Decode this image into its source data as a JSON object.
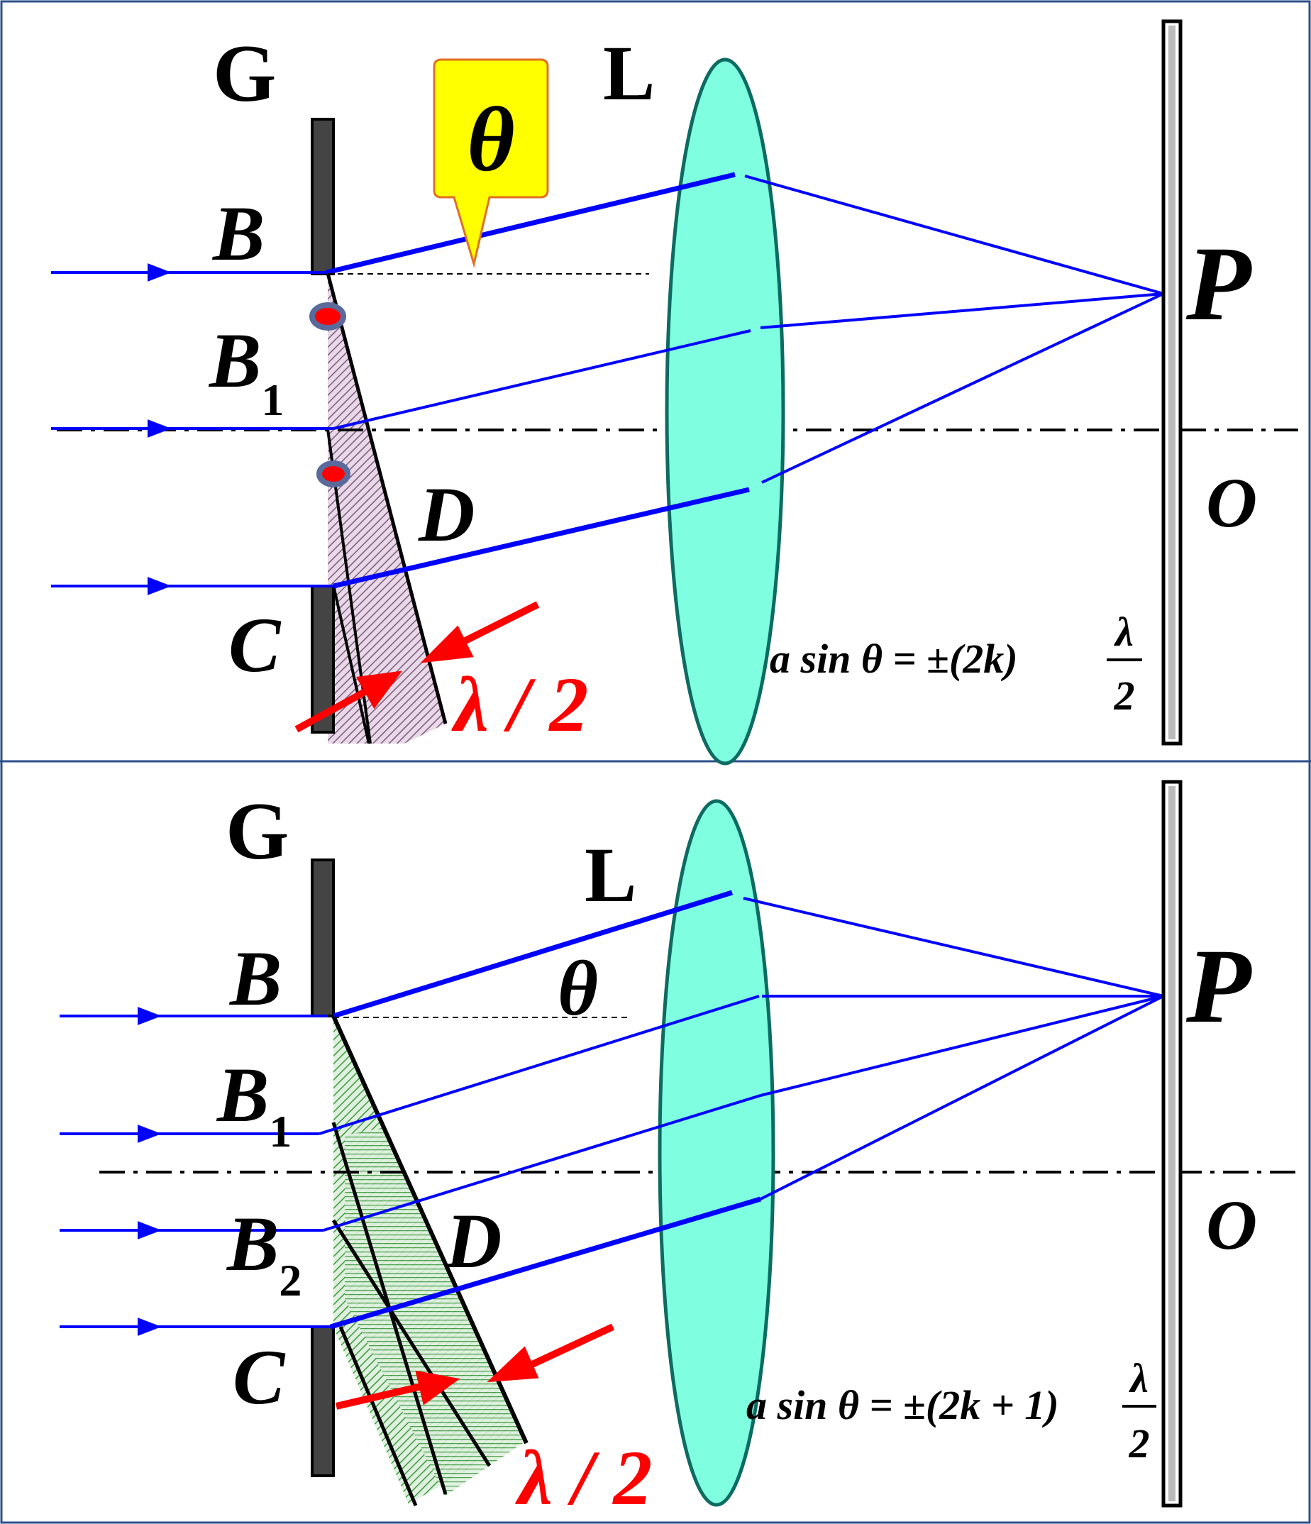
{
  "colors": {
    "ray": "#0000ff",
    "lens_fill": "#7fffe0",
    "lens_stroke": "#0e6b62",
    "arrow": "#ff0000",
    "callout_fill": "#ffff00",
    "callout_stroke": "#e07020",
    "slit_fill": "#444444",
    "hatch_top": "#7a5a7a",
    "hatch_bottom": "#3a9a3a",
    "frame": "#2c4f8a"
  },
  "top": {
    "grating_label": "G",
    "lens_label": "L",
    "screen_point": "P",
    "origin": "O",
    "theta_callout": "θ",
    "edge_B": "B",
    "edge_B1": "B",
    "edge_B1_sub": "1",
    "edge_C": "C",
    "point_D": "D",
    "half_wave": "λ / 2",
    "equation": "a sin θ = ±(2k)",
    "equation_numerator": "λ",
    "equation_denominator": "2"
  },
  "bottom": {
    "grating_label": "G",
    "lens_label": "L",
    "screen_point": "P",
    "origin": "O",
    "theta": "θ",
    "edge_B": "B",
    "edge_B1": "B",
    "edge_B1_sub": "1",
    "edge_B2": "B",
    "edge_B2_sub": "2",
    "edge_C": "C",
    "point_D": "D",
    "half_wave": "λ / 2",
    "equation": "a sin θ = ±(2k + 1)",
    "equation_numerator": "λ",
    "equation_denominator": "2"
  }
}
